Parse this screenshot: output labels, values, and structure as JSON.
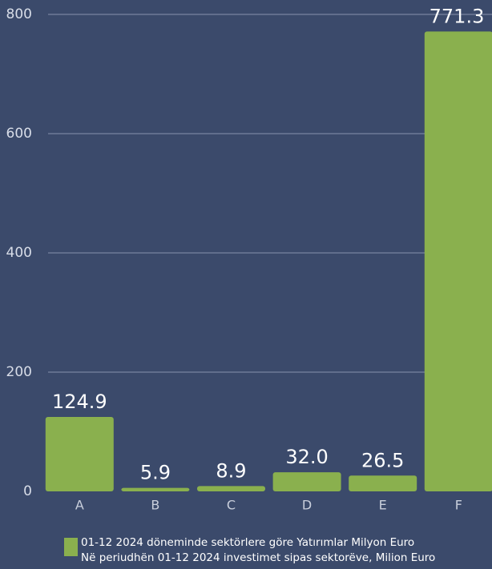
{
  "chart_data": {
    "type": "bar",
    "categories": [
      "A",
      "B",
      "C",
      "D",
      "E",
      "F"
    ],
    "series": [
      {
        "name": [
          "01-12 2024 döneminde sektörlere göre Yatırımlar  Milyon Euro",
          "Në periudhën 01-12 2024 investimet sipas sektorëve, Milion Euro"
        ],
        "color": "#8ab04e",
        "values": [
          124.9,
          5.9,
          8.9,
          32.0,
          26.5,
          771.3
        ],
        "value_labels": [
          "124.9",
          "5.9",
          "8.9",
          "32.0",
          "26.5",
          "771.3"
        ]
      }
    ],
    "ylim": [
      0,
      800
    ],
    "yticks": [
      0,
      200,
      400,
      600,
      800
    ],
    "grid": true
  }
}
